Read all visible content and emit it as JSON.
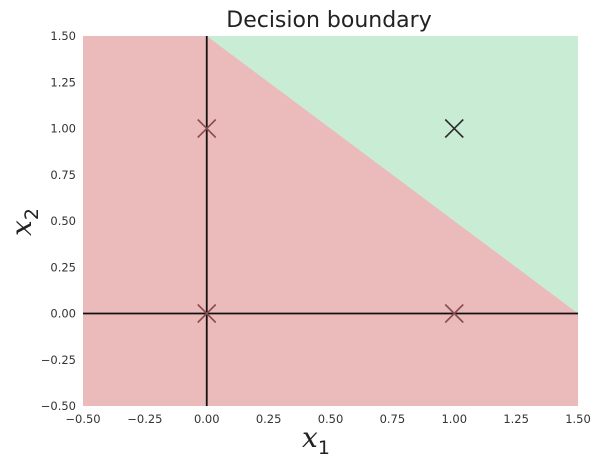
{
  "chart_data": {
    "type": "scatter",
    "title": "Decision boundary",
    "xlabel": {
      "symbol": "x",
      "subscript": "1"
    },
    "ylabel": {
      "symbol": "x",
      "subscript": "2"
    },
    "xlim": [
      -0.5,
      1.5
    ],
    "ylim": [
      -0.5,
      1.5
    ],
    "xticks": [
      "−0.50",
      "−0.25",
      "0.00",
      "0.25",
      "0.50",
      "0.75",
      "1.00",
      "1.25",
      "1.50"
    ],
    "yticks": [
      "−0.50",
      "−0.25",
      "0.00",
      "0.25",
      "0.50",
      "0.75",
      "1.00",
      "1.25",
      "1.50"
    ],
    "xtick_values": [
      -0.5,
      -0.25,
      0,
      0.25,
      0.5,
      0.75,
      1,
      1.25,
      1.5
    ],
    "ytick_values": [
      -0.5,
      -0.25,
      0,
      0.25,
      0.5,
      0.75,
      1,
      1.25,
      1.5
    ],
    "grid": false,
    "boundary": {
      "equation": "x1 + x2 = 1.5"
    },
    "regions": [
      {
        "class": 0,
        "color": "#ebbbbb"
      },
      {
        "class": 1,
        "color": "#c8ecd4"
      }
    ],
    "points": [
      {
        "x": 0,
        "y": 0,
        "class": 0,
        "color": "#8a4d4d"
      },
      {
        "x": 0,
        "y": 1,
        "class": 0,
        "color": "#8a4d4d"
      },
      {
        "x": 1,
        "y": 0,
        "class": 0,
        "color": "#8a4d4d"
      },
      {
        "x": 1,
        "y": 1,
        "class": 1,
        "color": "#2d2d2d"
      }
    ],
    "marker": "x",
    "axis_lines": {
      "x0": 0,
      "y0": 0,
      "color": "#111111"
    }
  }
}
